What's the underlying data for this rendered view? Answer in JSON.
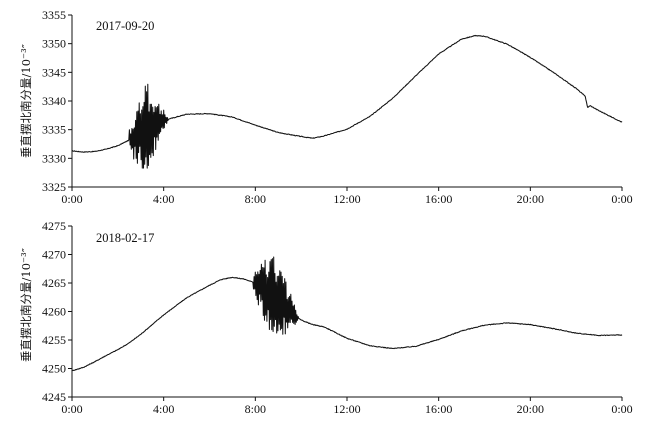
{
  "chart_data": [
    {
      "type": "line",
      "panel_label": "2017-09-20",
      "ylabel": "垂直摆北南分量/10⁻³″",
      "ylim": [
        3325,
        3355
      ],
      "yticks": [
        "3325",
        "3330",
        "3335",
        "3340",
        "3345",
        "3350",
        "3355"
      ],
      "xlim": [
        0,
        24
      ],
      "xticks": [
        "0:00",
        "4:00",
        "8:00",
        "12:00",
        "16:00",
        "20:00",
        "0:00"
      ],
      "grid": false,
      "series": [
        {
          "x": [
            0,
            0.5,
            1,
            1.5,
            2,
            2.5,
            2.9,
            3.4,
            4,
            5,
            6,
            7,
            8,
            9,
            10,
            10.5,
            11,
            12,
            13,
            14,
            15,
            16,
            17,
            17.6,
            18,
            19,
            20,
            21,
            22,
            22.4,
            22.5,
            22.6,
            23,
            23.5,
            24
          ],
          "y": [
            3331.3,
            3331.1,
            3331.2,
            3331.6,
            3332.2,
            3333.2,
            3334.2,
            3335.5,
            3336.6,
            3337.7,
            3337.8,
            3337.2,
            3335.8,
            3334.5,
            3333.8,
            3333.5,
            3333.9,
            3335.1,
            3337.3,
            3340.5,
            3344.4,
            3348.2,
            3350.8,
            3351.4,
            3351.3,
            3349.9,
            3347.6,
            3345.0,
            3342.2,
            3340.8,
            3338.8,
            3339.2,
            3338.3,
            3337.3,
            3336.3
          ]
        }
      ],
      "burst": {
        "x_start": 2.5,
        "x_end": 4.3,
        "y_min": 3328.3,
        "y_max": 3343.6
      }
    },
    {
      "type": "line",
      "panel_label": "2018-02-17",
      "ylabel": "垂直摆北南分量/10⁻³″",
      "ylim": [
        4245,
        4275
      ],
      "yticks": [
        "4245",
        "4250",
        "4255",
        "4260",
        "4265",
        "4270",
        "4275"
      ],
      "xlim": [
        0,
        24
      ],
      "xticks": [
        "0:00",
        "4:00",
        "8:00",
        "12:00",
        "16:00",
        "20:00",
        "0:00"
      ],
      "grid": false,
      "series": [
        {
          "x": [
            0,
            0.5,
            1,
            1.5,
            2,
            2.5,
            3,
            4,
            5,
            6,
            6.5,
            7,
            7.5,
            8,
            8.5,
            9,
            9.5,
            10,
            10.5,
            11,
            12,
            13,
            14,
            15,
            16,
            17,
            18,
            19,
            20,
            21,
            22,
            23,
            24
          ],
          "y": [
            4249.6,
            4250.2,
            4251.2,
            4252.3,
            4253.3,
            4254.5,
            4256.0,
            4259.4,
            4262.4,
            4264.6,
            4265.6,
            4266.0,
            4265.7,
            4265.0,
            4263.8,
            4262.0,
            4260.0,
            4258.5,
            4257.7,
            4257.3,
            4255.3,
            4254.0,
            4253.5,
            4253.9,
            4255.1,
            4256.6,
            4257.6,
            4258.0,
            4257.7,
            4257.0,
            4256.2,
            4255.8,
            4255.9
          ]
        }
      ],
      "burst": {
        "x_start": 7.9,
        "x_end": 10.0,
        "y_min": 4255.2,
        "y_max": 4270.3
      }
    }
  ]
}
